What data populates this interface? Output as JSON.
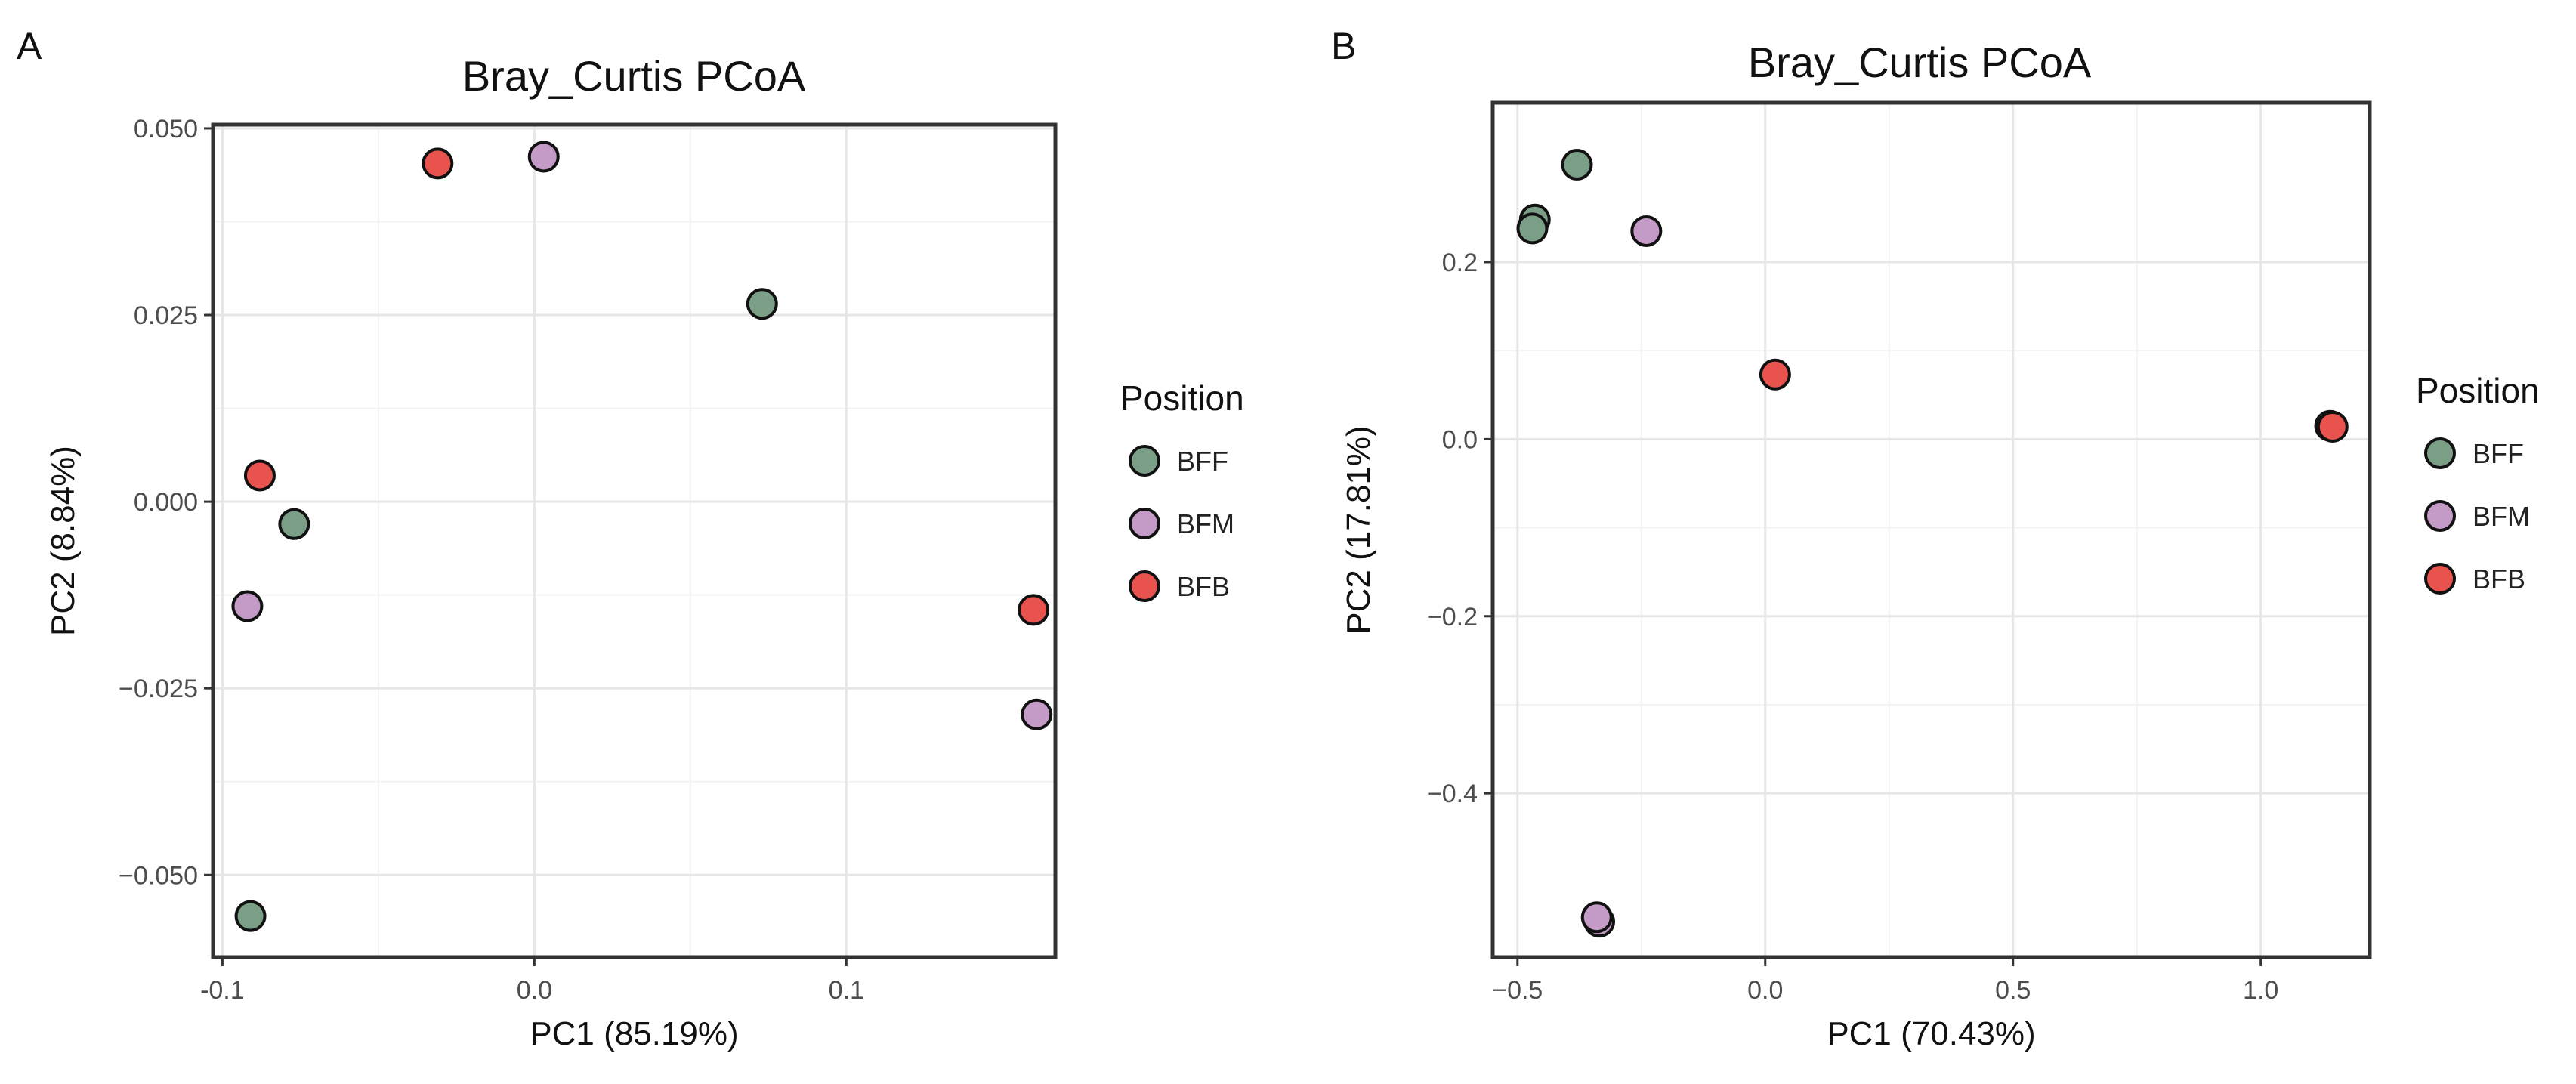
{
  "colors": {
    "BFF": "#7a9f86",
    "BFM": "#c49ac6",
    "BFB": "#e8534e"
  },
  "chart_data": [
    {
      "type": "scatter",
      "panel_label": "A",
      "title": "Bray_Curtis PCoA",
      "xlabel": "PC1 (85.19%)",
      "ylabel": "PC2 (8.84%)",
      "xlim": [
        -0.103,
        0.167
      ],
      "ylim": [
        -0.061,
        0.0505
      ],
      "xticks": [
        -0.1,
        0.0,
        0.1
      ],
      "xtick_labels": [
        "-0.1",
        "0.0",
        "0.1"
      ],
      "yticks": [
        0.05,
        0.025,
        0.0,
        -0.025,
        -0.05
      ],
      "ytick_labels": [
        "0.050",
        "0.025",
        "0.000",
        "−0.025",
        "−0.050"
      ],
      "grid": true,
      "legend": {
        "title": "Position",
        "position": "right",
        "entries": [
          "BFF",
          "BFM",
          "BFB"
        ]
      },
      "series": [
        {
          "name": "BFF",
          "points": [
            {
              "x": 0.073,
              "y": 0.0265
            },
            {
              "x": -0.077,
              "y": -0.003
            },
            {
              "x": -0.091,
              "y": -0.0555
            }
          ]
        },
        {
          "name": "BFM",
          "points": [
            {
              "x": 0.003,
              "y": 0.0462
            },
            {
              "x": -0.092,
              "y": -0.014
            },
            {
              "x": 0.161,
              "y": -0.0285
            }
          ]
        },
        {
          "name": "BFB",
          "points": [
            {
              "x": -0.031,
              "y": 0.0453
            },
            {
              "x": -0.088,
              "y": 0.0035
            },
            {
              "x": 0.16,
              "y": -0.0145
            }
          ]
        }
      ]
    },
    {
      "type": "scatter",
      "panel_label": "B",
      "title": "Bray_Curtis PCoA",
      "xlabel": "PC1 (70.43%)",
      "ylabel": "PC2 (17.81%)",
      "xlim": [
        -0.55,
        1.22
      ],
      "ylim": [
        -0.585,
        0.38
      ],
      "xticks": [
        -0.5,
        0.0,
        0.5,
        1.0
      ],
      "xtick_labels": [
        "−0.5",
        "0.0",
        "0.5",
        "1.0"
      ],
      "yticks": [
        0.2,
        0.0,
        -0.2,
        -0.4
      ],
      "ytick_labels": [
        "0.2",
        "0.0",
        "−0.2",
        "−0.4"
      ],
      "grid": true,
      "legend": {
        "title": "Position",
        "position": "right",
        "entries": [
          "BFF",
          "BFM",
          "BFB"
        ]
      },
      "series": [
        {
          "name": "BFF",
          "points": [
            {
              "x": -0.38,
              "y": 0.31
            },
            {
              "x": -0.465,
              "y": 0.248
            },
            {
              "x": -0.47,
              "y": 0.238
            }
          ]
        },
        {
          "name": "BFM",
          "points": [
            {
              "x": -0.24,
              "y": 0.235
            },
            {
              "x": -0.335,
              "y": -0.545
            },
            {
              "x": -0.34,
              "y": -0.54
            }
          ]
        },
        {
          "name": "BFB",
          "points": [
            {
              "x": 0.02,
              "y": 0.073
            },
            {
              "x": 1.14,
              "y": 0.015
            },
            {
              "x": 1.145,
              "y": 0.014
            }
          ]
        }
      ]
    }
  ]
}
